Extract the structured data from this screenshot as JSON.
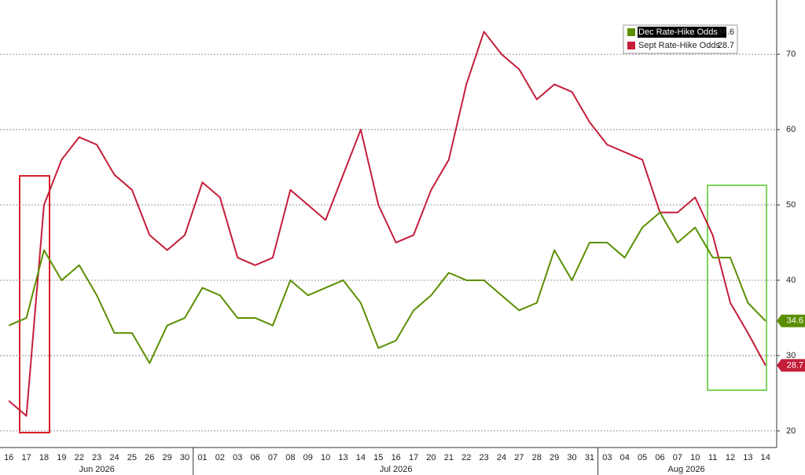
{
  "chart_data": {
    "type": "line",
    "categories": [
      "16",
      "17",
      "18",
      "19",
      "22",
      "23",
      "24",
      "25",
      "26",
      "29",
      "30",
      "01",
      "02",
      "03",
      "06",
      "07",
      "08",
      "09",
      "10",
      "13",
      "14",
      "15",
      "16",
      "17",
      "20",
      "21",
      "22",
      "23",
      "24",
      "27",
      "28",
      "29",
      "30",
      "31",
      "03",
      "04",
      "05",
      "06",
      "07",
      "10",
      "11",
      "12",
      "13",
      "14"
    ],
    "x_groups": [
      "Jun 2026",
      "Jul 2026",
      "Aug 2026"
    ],
    "series": [
      {
        "name": "Dec Rate-Hike Odds",
        "color": "#5b8f00",
        "values": [
          34,
          35,
          44,
          40,
          42,
          38,
          33,
          33,
          29,
          34,
          35,
          39,
          38,
          35,
          35,
          34,
          40,
          38,
          39,
          40,
          37,
          31,
          32,
          36,
          38,
          41,
          40,
          40,
          38,
          36,
          37,
          44,
          40,
          45,
          45,
          43,
          47,
          49,
          45,
          47,
          43,
          43,
          37,
          34.6
        ]
      },
      {
        "name": "Sept Rate-Hike Odds",
        "color": "#c41e3a",
        "values": [
          24,
          22,
          50,
          56,
          59,
          58,
          54,
          52,
          46,
          44,
          46,
          53,
          51,
          43,
          42,
          43,
          52,
          50,
          48,
          54,
          60,
          50,
          45,
          46,
          52,
          56,
          66,
          73,
          70,
          68,
          64,
          66,
          65,
          61,
          58,
          57,
          56,
          49,
          49,
          51,
          46,
          37,
          33,
          28.7
        ]
      }
    ],
    "ylim": [
      17.8,
      77.2
    ],
    "yticks": [
      20,
      30,
      40,
      50,
      60,
      70
    ],
    "grid": true,
    "legend": "top-right"
  }
}
